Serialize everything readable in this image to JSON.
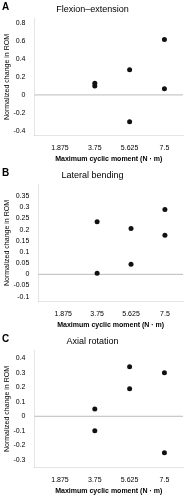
{
  "chart_data": [
    {
      "type": "scatter",
      "annotations": [
        "A"
      ],
      "title": "Flexion–extension",
      "xlabel": "Maximum cyclic moment (N · m)",
      "ylabel": "Normalized change in ROM",
      "x": [
        3.75,
        3.75,
        5.625,
        5.625,
        7.5,
        7.5
      ],
      "values": [
        0.1,
        0.13,
        0.28,
        -0.3,
        0.62,
        0.07
      ],
      "color": "#111111",
      "xlim": [
        0.5,
        8.5
      ],
      "xticks": [
        1.875,
        3.75,
        5.625,
        7.5
      ],
      "ylim": [
        -0.45,
        0.85
      ],
      "yticks": [
        -0.4,
        -0.2,
        0,
        0.2,
        0.4,
        0.6,
        0.8
      ],
      "grid": false
    },
    {
      "type": "scatter",
      "annotations": [
        "B"
      ],
      "title": "Lateral bending",
      "xlabel": "Maximum cyclic moment (N · m)",
      "ylabel": "Normalized change in ROM",
      "x": [
        3.75,
        3.75,
        5.625,
        5.625,
        7.5,
        7.5
      ],
      "values": [
        0.235,
        0.005,
        0.205,
        0.045,
        0.29,
        0.175
      ],
      "color": "#111111",
      "xlim": [
        0.5,
        8.5
      ],
      "xticks": [
        1.875,
        3.75,
        5.625,
        7.5
      ],
      "ylim": [
        -0.12,
        0.4
      ],
      "yticks": [
        -0.1,
        -0.05,
        0,
        0.05,
        0.1,
        0.15,
        0.2,
        0.25,
        0.3,
        0.35
      ],
      "grid": false
    },
    {
      "type": "scatter",
      "annotations": [
        "C"
      ],
      "title": "Axial rotation",
      "xlabel": "Maximum cyclic moment (N · m)",
      "ylabel": "Normalized change in ROM",
      "x": [
        3.75,
        3.75,
        5.625,
        5.625,
        7.5,
        7.5
      ],
      "values": [
        0.05,
        -0.1,
        0.34,
        0.19,
        0.3,
        -0.25
      ],
      "color": "#111111",
      "xlim": [
        0.5,
        8.5
      ],
      "xticks": [
        1.875,
        3.75,
        5.625,
        7.5
      ],
      "ylim": [
        -0.35,
        0.45
      ],
      "yticks": [
        -0.3,
        -0.2,
        -0.1,
        0,
        0.1,
        0.2,
        0.3,
        0.4
      ],
      "grid": false
    }
  ]
}
